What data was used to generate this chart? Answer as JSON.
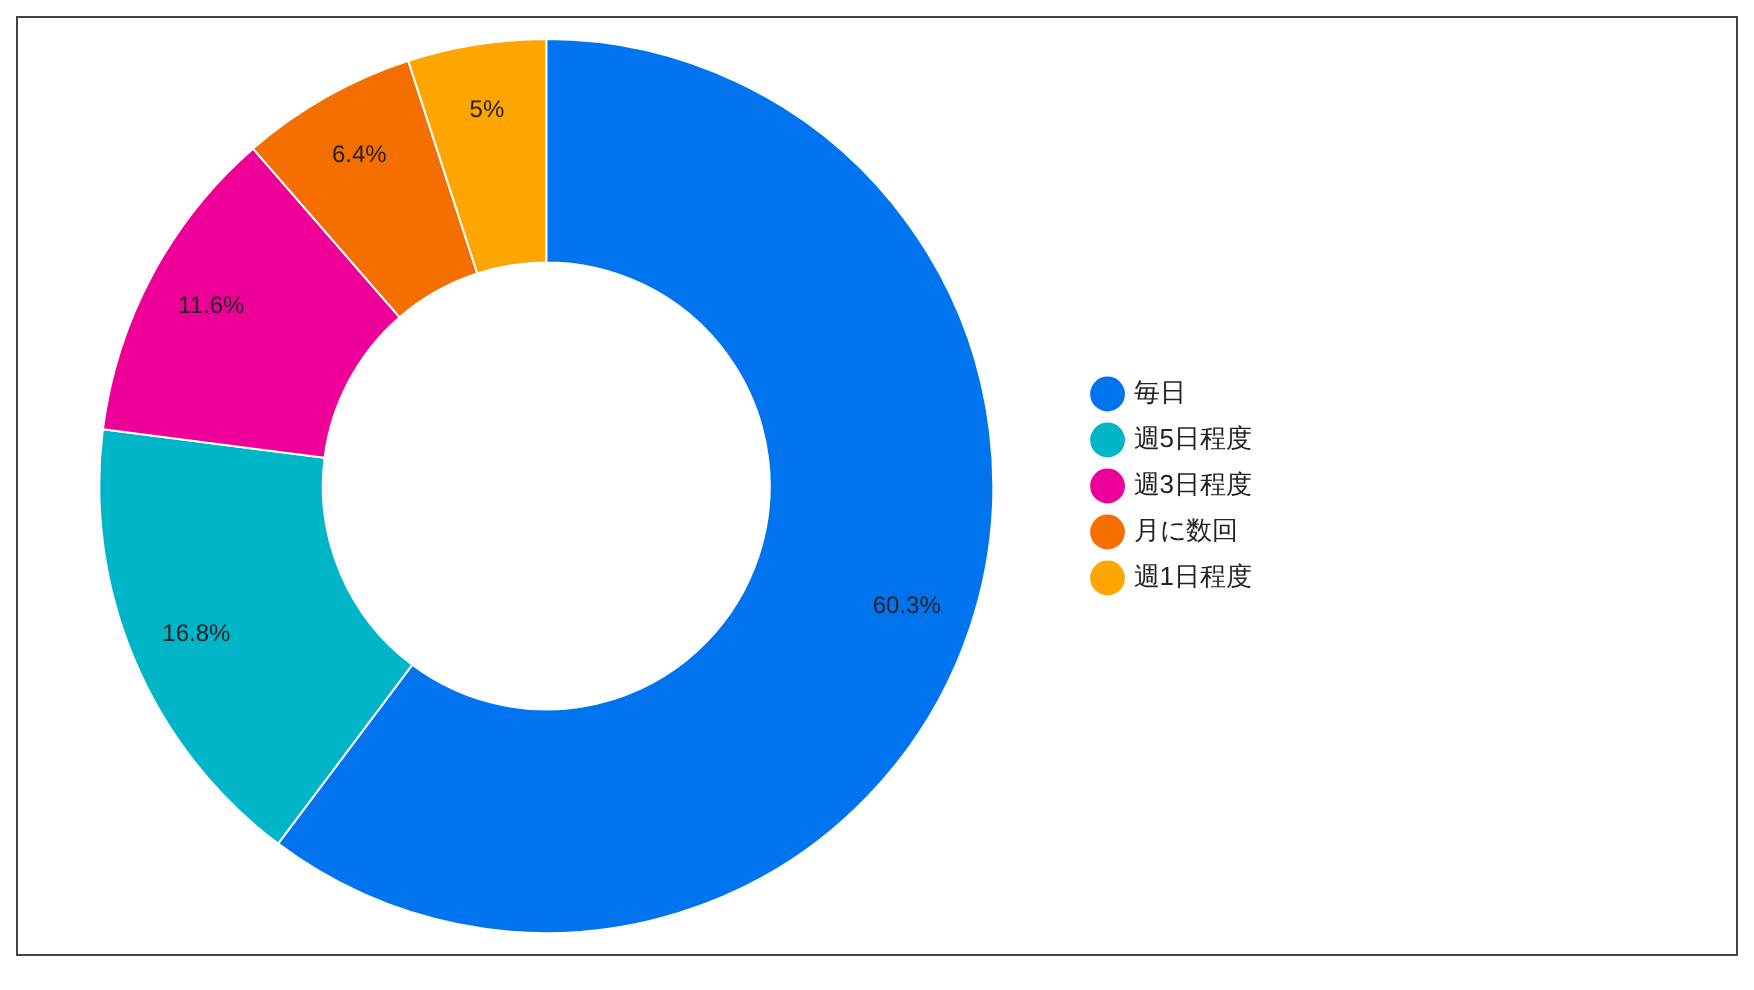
{
  "chart_data": {
    "type": "donut",
    "categories": [
      "毎日",
      "週5日程度",
      "週3日程度",
      "月に数回",
      "週1日程度"
    ],
    "values": [
      60.3,
      16.8,
      11.6,
      6.4,
      5
    ],
    "colors": [
      "#0073ef",
      "#00b5c8",
      "#ee0098",
      "#f56e00",
      "#ffa500"
    ],
    "value_labels": [
      "60.3%",
      "16.8%",
      "11.6%",
      "6.4%",
      "5%"
    ],
    "legend": "right"
  }
}
